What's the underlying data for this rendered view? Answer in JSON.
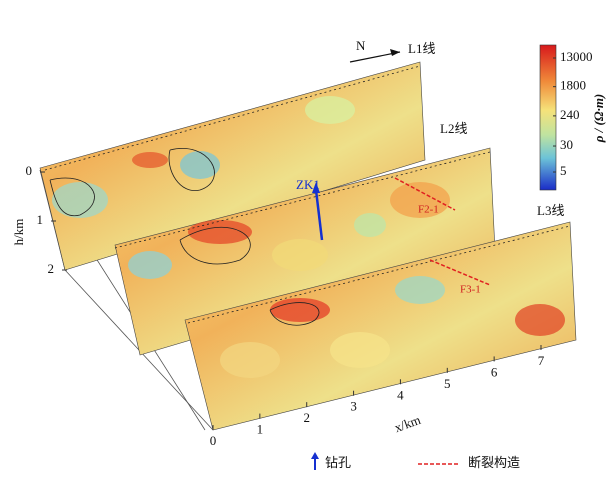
{
  "north": "N",
  "lines": [
    "L1线",
    "L2线",
    "L3线"
  ],
  "x_axis": {
    "label": "x/km",
    "ticks": [
      0,
      1,
      2,
      3,
      4,
      5,
      6,
      7
    ]
  },
  "h_axis": {
    "label": "h/km",
    "ticks": [
      0,
      1,
      2
    ]
  },
  "colorbar": {
    "title": "ρ / (Ω·m)",
    "ticks": [
      13000,
      1800,
      240,
      30,
      5
    ]
  },
  "annotations": {
    "borehole": "ZK1",
    "faults": [
      "F2-1",
      "F3-1"
    ]
  },
  "legend": [
    "钻孔",
    "断裂构造"
  ]
}
